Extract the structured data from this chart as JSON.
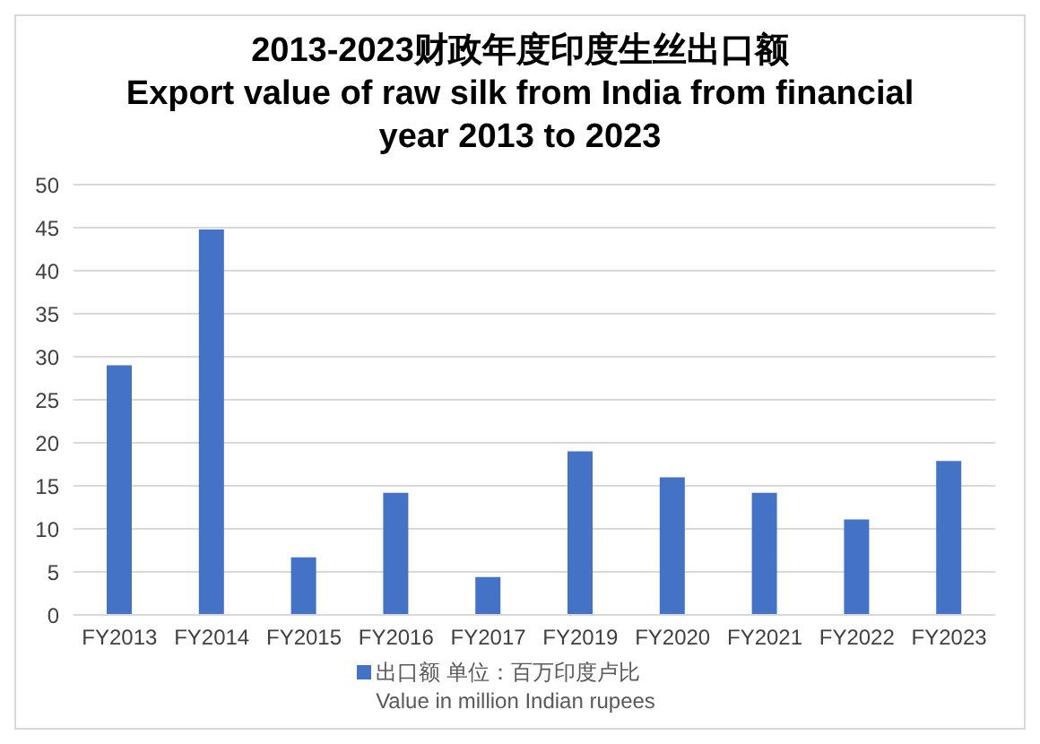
{
  "chart_data": {
    "type": "bar",
    "title": "2013-2023财政年度印度生丝出口额\nExport value of raw silk from India from financial year 2013 to 2023",
    "categories": [
      "FY2013",
      "FY2014",
      "FY2015",
      "FY2016",
      "FY2017",
      "FY2019",
      "FY2020",
      "FY2021",
      "FY2022",
      "FY2023"
    ],
    "series": [
      {
        "name": "出口额 单位：百万印度卢比\nValue in million Indian rupees",
        "color": "#4472c4",
        "values": [
          29.0,
          44.8,
          6.7,
          14.2,
          4.4,
          19.0,
          16.0,
          14.2,
          11.1,
          17.9
        ]
      }
    ],
    "ylim": [
      0,
      50
    ],
    "yticks": [
      0,
      5,
      10,
      15,
      20,
      25,
      30,
      35,
      40,
      45,
      50
    ],
    "grid": "y",
    "legend": "bottom"
  }
}
